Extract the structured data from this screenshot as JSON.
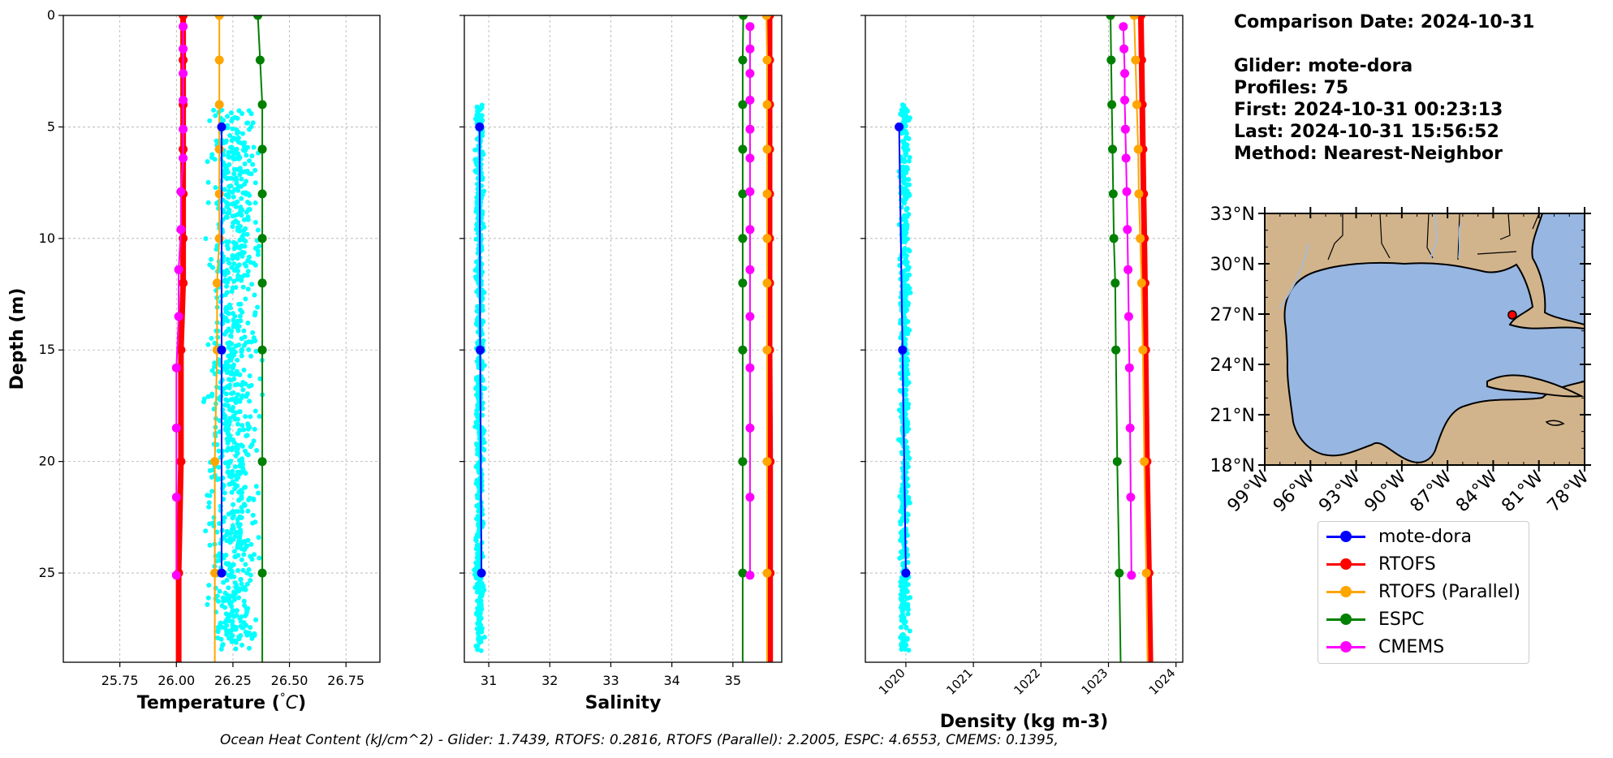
{
  "info": {
    "comparison_date": "Comparison Date: 2024-10-31",
    "glider": "Glider: mote-dora",
    "profiles": "Profiles: 75",
    "first": "First: 2024-10-31 00:23:13",
    "last": "Last: 2024-10-31 15:56:52",
    "method": "Method: Nearest-Neighbor"
  },
  "footer": "Ocean Heat Content (kJ/cm^2) - Glider: 1.7439,  RTOFS: 0.2816,  RTOFS (Parallel): 2.2005,  ESPC: 4.6553,  CMEMS: 0.1395,",
  "legend": [
    {
      "name": "mote-dora",
      "color": "#0000ff"
    },
    {
      "name": "RTOFS",
      "color": "#ff0000"
    },
    {
      "name": "RTOFS (Parallel)",
      "color": "#ffa500"
    },
    {
      "name": "ESPC",
      "color": "#008000"
    },
    {
      "name": "CMEMS",
      "color": "#ff00ff"
    }
  ],
  "colors": {
    "glider_scatter": "#00ffff",
    "grid": "#b0b0b0",
    "land": "#d2b48c",
    "ocean": "#97b6e1",
    "glider_marker": "#ff0000"
  },
  "chart_data": [
    {
      "type": "line",
      "xlabel": "Temperature (°C)",
      "ylabel": "Depth (m)",
      "xlim": [
        25.5,
        26.9
      ],
      "ylim": [
        29,
        0
      ],
      "grid": true,
      "xticks": [
        "25.75",
        "26.00",
        "26.25",
        "26.50",
        "26.75"
      ],
      "xtick_values": [
        25.75,
        26.0,
        26.25,
        26.5,
        26.75
      ],
      "yticks": [
        "0",
        "5",
        "10",
        "15",
        "20",
        "25"
      ],
      "ytick_values": [
        0,
        5,
        10,
        15,
        20,
        25
      ],
      "scatter": {
        "name": "mote-dora profiles",
        "x_range": [
          26.1,
          26.4
        ],
        "depth_range": [
          4.2,
          28.5
        ]
      },
      "series": [
        {
          "name": "mote-dora",
          "depth": [
            5,
            15,
            25
          ],
          "values": [
            26.2,
            26.2,
            26.2
          ],
          "width": 2
        },
        {
          "name": "RTOFS",
          "depth": [
            0,
            2,
            4,
            6,
            8,
            10,
            12,
            15,
            20,
            25,
            29
          ],
          "values": [
            26.03,
            26.03,
            26.03,
            26.03,
            26.03,
            26.03,
            26.03,
            26.02,
            26.02,
            26.01,
            26.01
          ],
          "width": 7
        },
        {
          "name": "RTOFS (Parallel)",
          "depth": [
            0,
            2,
            4,
            6,
            8,
            10,
            12,
            15,
            20,
            25,
            29
          ],
          "values": [
            26.19,
            26.19,
            26.19,
            26.19,
            26.19,
            26.19,
            26.18,
            26.18,
            26.17,
            26.17,
            26.17
          ],
          "width": 2
        },
        {
          "name": "ESPC",
          "depth": [
            0,
            2,
            4,
            6,
            8,
            10,
            12,
            15,
            20,
            25,
            29
          ],
          "values": [
            26.36,
            26.37,
            26.38,
            26.38,
            26.38,
            26.38,
            26.38,
            26.38,
            26.38,
            26.38,
            26.38
          ],
          "width": 2
        },
        {
          "name": "CMEMS",
          "depth": [
            0.5,
            1.5,
            2.6,
            3.8,
            5.1,
            6.4,
            7.9,
            9.6,
            11.4,
            13.5,
            15.8,
            18.5,
            21.6,
            25.1
          ],
          "values": [
            26.03,
            26.03,
            26.03,
            26.03,
            26.03,
            26.03,
            26.02,
            26.02,
            26.01,
            26.01,
            26.0,
            26.0,
            26.0,
            26.0
          ],
          "width": 2
        }
      ]
    },
    {
      "type": "line",
      "xlabel": "Salinity",
      "xlim": [
        30.6,
        35.8
      ],
      "ylim": [
        29,
        0
      ],
      "grid": true,
      "xticks": [
        "31",
        "32",
        "33",
        "34",
        "35"
      ],
      "xtick_values": [
        31,
        32,
        33,
        34,
        35
      ],
      "scatter": {
        "name": "mote-dora profiles",
        "x_range": [
          30.75,
          30.95
        ],
        "depth_range": [
          4.0,
          28.5
        ]
      },
      "series": [
        {
          "name": "mote-dora",
          "depth": [
            5,
            15,
            25
          ],
          "values": [
            30.85,
            30.86,
            30.88
          ],
          "width": 2
        },
        {
          "name": "RTOFS",
          "depth": [
            0,
            2,
            4,
            6,
            8,
            10,
            12,
            15,
            20,
            25,
            29
          ],
          "values": [
            35.6,
            35.6,
            35.6,
            35.6,
            35.6,
            35.6,
            35.6,
            35.6,
            35.61,
            35.61,
            35.61
          ],
          "width": 7
        },
        {
          "name": "RTOFS (Parallel)",
          "depth": [
            0,
            2,
            4,
            6,
            8,
            10,
            12,
            15,
            20,
            25,
            29
          ],
          "values": [
            35.55,
            35.56,
            35.56,
            35.56,
            35.56,
            35.56,
            35.56,
            35.56,
            35.56,
            35.56,
            35.56
          ],
          "width": 2
        },
        {
          "name": "ESPC",
          "depth": [
            0,
            2,
            4,
            6,
            8,
            10,
            12,
            15,
            20,
            25,
            29
          ],
          "values": [
            35.17,
            35.16,
            35.16,
            35.16,
            35.16,
            35.16,
            35.16,
            35.16,
            35.16,
            35.16,
            35.16
          ],
          "width": 2
        },
        {
          "name": "CMEMS",
          "depth": [
            0.5,
            1.5,
            2.6,
            3.8,
            5.1,
            6.4,
            7.9,
            9.6,
            11.4,
            13.5,
            15.8,
            18.5,
            21.6,
            25.1
          ],
          "values": [
            35.28,
            35.28,
            35.28,
            35.28,
            35.28,
            35.28,
            35.28,
            35.28,
            35.28,
            35.28,
            35.28,
            35.28,
            35.28,
            35.28
          ],
          "width": 2
        }
      ]
    },
    {
      "type": "line",
      "xlabel": "Density (kg m-3)",
      "xlim": [
        1019.4,
        1024.1
      ],
      "ylim": [
        29,
        0
      ],
      "grid": true,
      "xticks": [
        "1020",
        "1021",
        "1022",
        "1023",
        "1024"
      ],
      "xtick_values": [
        1020,
        1021,
        1022,
        1023,
        1024
      ],
      "scatter": {
        "name": "mote-dora profiles",
        "x_range": [
          1019.88,
          1020.08
        ],
        "depth_range": [
          4.0,
          28.5
        ]
      },
      "series": [
        {
          "name": "mote-dora",
          "depth": [
            5,
            15,
            25
          ],
          "values": [
            1019.9,
            1019.95,
            1020.0
          ],
          "width": 2
        },
        {
          "name": "RTOFS",
          "depth": [
            0,
            2,
            4,
            6,
            8,
            10,
            12,
            15,
            20,
            25,
            29
          ],
          "values": [
            1023.48,
            1023.49,
            1023.5,
            1023.51,
            1023.52,
            1023.53,
            1023.54,
            1023.55,
            1023.57,
            1023.6,
            1023.62
          ],
          "width": 7
        },
        {
          "name": "RTOFS (Parallel)",
          "depth": [
            0,
            2,
            4,
            6,
            8,
            10,
            12,
            15,
            20,
            25,
            29
          ],
          "values": [
            1023.38,
            1023.4,
            1023.42,
            1023.44,
            1023.45,
            1023.47,
            1023.49,
            1023.51,
            1023.53,
            1023.56,
            1023.58
          ],
          "width": 2
        },
        {
          "name": "ESPC",
          "depth": [
            0,
            2,
            4,
            6,
            8,
            10,
            12,
            15,
            20,
            25,
            29
          ],
          "values": [
            1023.03,
            1023.04,
            1023.05,
            1023.06,
            1023.07,
            1023.08,
            1023.1,
            1023.11,
            1023.13,
            1023.16,
            1023.18
          ],
          "width": 2
        },
        {
          "name": "CMEMS",
          "depth": [
            0.5,
            1.5,
            2.6,
            3.8,
            5.1,
            6.4,
            7.9,
            9.6,
            11.4,
            13.5,
            15.8,
            18.5,
            21.6,
            25.1
          ],
          "values": [
            1023.22,
            1023.23,
            1023.24,
            1023.24,
            1023.25,
            1023.26,
            1023.27,
            1023.28,
            1023.29,
            1023.3,
            1023.31,
            1023.32,
            1023.33,
            1023.34
          ],
          "width": 2
        }
      ]
    }
  ],
  "map": {
    "lat_ticks": [
      "33°N",
      "30°N",
      "27°N",
      "24°N",
      "21°N",
      "18°N"
    ],
    "lat_values": [
      33,
      30,
      27,
      24,
      21,
      18
    ],
    "lon_ticks": [
      "99°W",
      "96°W",
      "93°W",
      "90°W",
      "87°W",
      "84°W",
      "81°W",
      "78°W"
    ],
    "lon_values": [
      -99,
      -96,
      -93,
      -90,
      -87,
      -84,
      -81,
      -78
    ],
    "extent": {
      "lon": [
        -99,
        -78
      ],
      "lat": [
        18,
        33
      ]
    },
    "glider_position": {
      "lon": -82.75,
      "lat": 26.95
    }
  }
}
